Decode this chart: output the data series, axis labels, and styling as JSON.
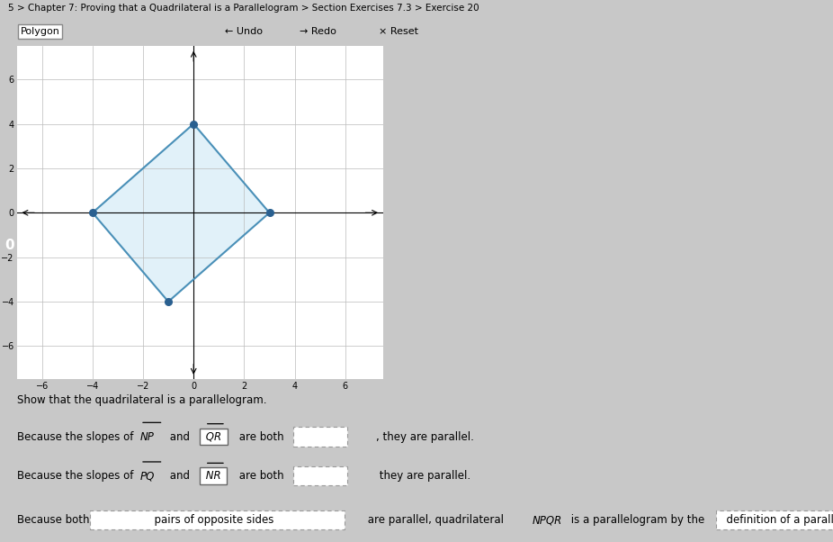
{
  "title": "5 > Chapter 7: Proving that a Quadrilateral is a Parallelogram > Section Exercises 7.3 > Exercise 20",
  "graph": {
    "xlim": [
      -7,
      7.5
    ],
    "ylim": [
      -7.5,
      7.5
    ],
    "xticks": [
      -6,
      -4,
      -2,
      0,
      2,
      4,
      6
    ],
    "yticks": [
      -6,
      -4,
      -2,
      0,
      2,
      4,
      6
    ],
    "points_order": [
      "N",
      "P",
      "Q",
      "R"
    ],
    "N": [
      -4,
      0
    ],
    "P": [
      0,
      4
    ],
    "Q": [
      3,
      0
    ],
    "R": [
      -1,
      -4
    ],
    "polygon_stroke": "#4a90b8",
    "polygon_fill": "#cde8f5",
    "point_color": "#2a6090",
    "grid_color": "#bbbbbb",
    "axis_color": "black",
    "bg_color": "white"
  },
  "fig_bg": "#c8c8c8",
  "graph_panel_bg": "#e8e8e8",
  "toolbar_bg": "#c8c8c8",
  "text_panel_bg": "#e8e8e8",
  "badge_bg": "#2244aa",
  "show_text": "Show that the quadrilateral is a parallelogram.",
  "fs_title": 7.5,
  "fs_text": 8.5,
  "fs_graph": 7
}
